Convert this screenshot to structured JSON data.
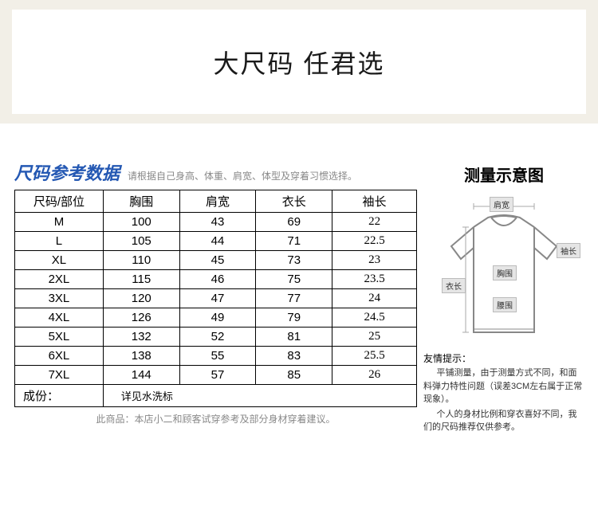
{
  "banner": {
    "title": "大尺码  任君选"
  },
  "section": {
    "title": "尺码参考数据",
    "subtitle": "请根据自己身高、体重、肩宽、体型及穿着习惯选择。"
  },
  "table": {
    "columns": [
      "尺码/部位",
      "胸围",
      "肩宽",
      "衣长",
      "袖长"
    ],
    "rows": [
      [
        "M",
        "100",
        "43",
        "69",
        "22"
      ],
      [
        "L",
        "105",
        "44",
        "71",
        "22.5"
      ],
      [
        "XL",
        "110",
        "45",
        "73",
        "23"
      ],
      [
        "2XL",
        "115",
        "46",
        "75",
        "23.5"
      ],
      [
        "3XL",
        "120",
        "47",
        "77",
        "24"
      ],
      [
        "4XL",
        "126",
        "49",
        "79",
        "24.5"
      ],
      [
        "5XL",
        "132",
        "52",
        "81",
        "25"
      ],
      [
        "6XL",
        "138",
        "55",
        "83",
        "25.5"
      ],
      [
        "7XL",
        "144",
        "57",
        "85",
        "26"
      ]
    ],
    "col_widths": [
      "22%",
      "19%",
      "19%",
      "19%",
      "21%"
    ],
    "footer": {
      "label": "成份：",
      "value": "详见水洗标"
    },
    "disclaimer": "此商品：本店小二和顾客试穿参考及部分身材穿着建议。"
  },
  "diagram": {
    "title": "测量示意图",
    "labels": {
      "shoulder": "肩宽",
      "sleeve": "袖长",
      "chest": "胸围",
      "length": "衣长",
      "waist": "腰围"
    },
    "stroke": "#888888",
    "fill": "#ffffff"
  },
  "tips": {
    "title": "友情提示：",
    "p1": "平铺测量，由于测量方式不同，和面料弹力特性问题（误差3CM左右属于正常现象）。",
    "p2": "个人的身材比例和穿衣喜好不同，我们的尺码推荐仅供参考。"
  }
}
